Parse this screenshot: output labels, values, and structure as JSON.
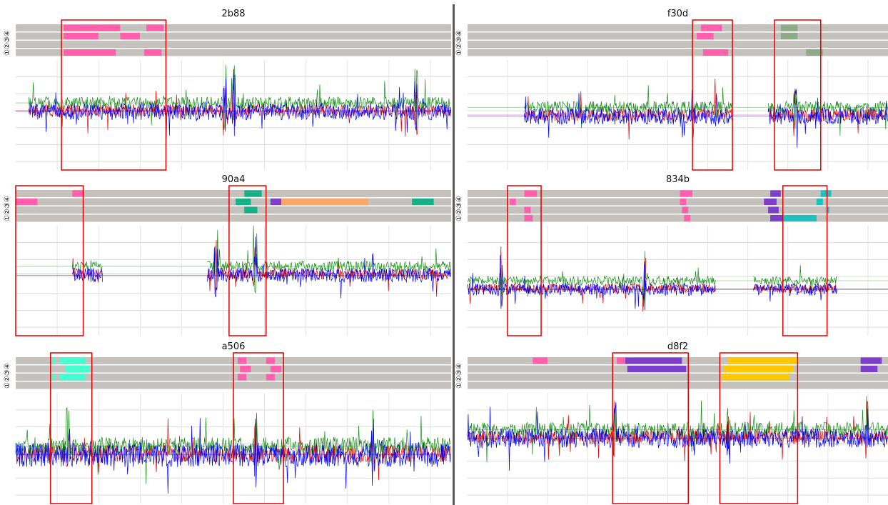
{
  "figure": {
    "track_labels": [
      "①",
      "②",
      "③",
      "④"
    ],
    "series_colors": [
      "#e00000",
      "#1a8a1a",
      "#0000ee"
    ]
  },
  "chart_data": [
    {
      "id": "2b88",
      "title": "2b88",
      "type": "line",
      "annotation_tracks": [
        [
          {
            "start": 0.11,
            "end": 0.24,
            "color": "#ff5fab"
          },
          {
            "start": 0.3,
            "end": 0.34,
            "color": "#ff5fab"
          }
        ],
        [
          {
            "start": 0.11,
            "end": 0.19,
            "color": "#ff5fab"
          },
          {
            "start": 0.24,
            "end": 0.285,
            "color": "#ff5fab"
          }
        ],
        [],
        [
          {
            "start": 0.11,
            "end": 0.23,
            "color": "#ff5fab"
          },
          {
            "start": 0.295,
            "end": 0.335,
            "color": "#ff5fab"
          }
        ]
      ],
      "highlights": [
        {
          "start": 0.105,
          "end": 0.345
        }
      ],
      "signal": {
        "active": [
          [
            0.03,
            1.0
          ]
        ],
        "level": 0.44,
        "spread": 0.14,
        "spikes": [
          0.5,
          0.92,
          0.48
        ]
      }
    },
    {
      "id": "90a4",
      "title": "90a4",
      "type": "line",
      "annotation_tracks": [
        [
          {
            "start": 0.13,
            "end": 0.155,
            "color": "#ff5fab"
          },
          {
            "start": 0.525,
            "end": 0.565,
            "color": "#17b085"
          }
        ],
        [
          {
            "start": 0.0,
            "end": 0.05,
            "color": "#ff5fab"
          },
          {
            "start": 0.505,
            "end": 0.54,
            "color": "#17b085"
          },
          {
            "start": 0.585,
            "end": 0.61,
            "color": "#7c3fc9"
          },
          {
            "start": 0.61,
            "end": 0.81,
            "color": "#f7a86a"
          },
          {
            "start": 0.91,
            "end": 0.96,
            "color": "#17b085"
          }
        ],
        [
          {
            "start": 0.525,
            "end": 0.555,
            "color": "#17b085"
          }
        ],
        []
      ],
      "highlights": [
        {
          "start": 0.0,
          "end": 0.155
        },
        {
          "start": 0.49,
          "end": 0.575
        }
      ],
      "signal": {
        "active": [
          [
            0.13,
            0.2
          ],
          [
            0.44,
            1.0
          ]
        ],
        "level": 0.42,
        "spread": 0.12,
        "spikes": [
          0.55,
          0.46
        ]
      }
    },
    {
      "id": "a506",
      "title": "a506",
      "type": "line",
      "annotation_tracks": [
        [
          {
            "start": 0.085,
            "end": 0.09,
            "color": "#44ffd0"
          },
          {
            "start": 0.1,
            "end": 0.16,
            "color": "#44ffd0"
          },
          {
            "start": 0.51,
            "end": 0.53,
            "color": "#ff5fab"
          },
          {
            "start": 0.575,
            "end": 0.595,
            "color": "#ff5fab"
          }
        ],
        [
          {
            "start": 0.115,
            "end": 0.17,
            "color": "#44ffd0"
          },
          {
            "start": 0.515,
            "end": 0.54,
            "color": "#ff5fab"
          },
          {
            "start": 0.585,
            "end": 0.61,
            "color": "#ff5fab"
          }
        ],
        [
          {
            "start": 0.085,
            "end": 0.09,
            "color": "#44ffd0"
          },
          {
            "start": 0.1,
            "end": 0.16,
            "color": "#44ffd0"
          },
          {
            "start": 0.51,
            "end": 0.53,
            "color": "#ff5fab"
          },
          {
            "start": 0.575,
            "end": 0.595,
            "color": "#ff5fab"
          }
        ],
        []
      ],
      "highlights": [
        {
          "start": 0.08,
          "end": 0.175
        },
        {
          "start": 0.5,
          "end": 0.615
        }
      ],
      "signal": {
        "active": [
          [
            0.0,
            1.0
          ]
        ],
        "level": 0.53,
        "spread": 0.2,
        "spikes": [
          0.12,
          0.55,
          0.82
        ]
      }
    },
    {
      "id": "f30d",
      "title": "f30d",
      "type": "line",
      "annotation_tracks": [
        [
          {
            "start": 0.555,
            "end": 0.605,
            "color": "#ff5fab"
          },
          {
            "start": 0.745,
            "end": 0.785,
            "color": "#8faa88"
          }
        ],
        [
          {
            "start": 0.545,
            "end": 0.585,
            "color": "#ff5fab"
          },
          {
            "start": 0.745,
            "end": 0.785,
            "color": "#8faa88"
          }
        ],
        [],
        [
          {
            "start": 0.56,
            "end": 0.62,
            "color": "#ff5fab"
          },
          {
            "start": 0.805,
            "end": 0.845,
            "color": "#8faa88"
          }
        ]
      ],
      "highlights": [
        {
          "start": 0.535,
          "end": 0.63
        },
        {
          "start": 0.73,
          "end": 0.84
        }
      ],
      "signal": {
        "active": [
          [
            0.135,
            0.63
          ],
          [
            0.715,
            1.0
          ]
        ],
        "level": 0.48,
        "spread": 0.14,
        "spikes": [
          0.59,
          0.78
        ]
      }
    },
    {
      "id": "834b",
      "title": "834b",
      "type": "line",
      "annotation_tracks": [
        [
          {
            "start": 0.135,
            "end": 0.165,
            "color": "#ff5fab"
          },
          {
            "start": 0.505,
            "end": 0.535,
            "color": "#ff5fab"
          },
          {
            "start": 0.72,
            "end": 0.745,
            "color": "#7c3fc9"
          },
          {
            "start": 0.84,
            "end": 0.865,
            "color": "#1fbfbf"
          }
        ],
        [
          {
            "start": 0.1,
            "end": 0.115,
            "color": "#ff5fab"
          },
          {
            "start": 0.505,
            "end": 0.52,
            "color": "#ff5fab"
          },
          {
            "start": 0.705,
            "end": 0.735,
            "color": "#7c3fc9"
          },
          {
            "start": 0.83,
            "end": 0.845,
            "color": "#1fbfbf"
          }
        ],
        [
          {
            "start": 0.135,
            "end": 0.15,
            "color": "#ff5fab"
          },
          {
            "start": 0.51,
            "end": 0.525,
            "color": "#ff5fab"
          },
          {
            "start": 0.715,
            "end": 0.74,
            "color": "#7c3fc9"
          },
          {
            "start": 0.855,
            "end": 0.86,
            "color": "#1fbfbf"
          }
        ],
        [
          {
            "start": 0.135,
            "end": 0.155,
            "color": "#ff5fab"
          },
          {
            "start": 0.515,
            "end": 0.53,
            "color": "#ff5fab"
          },
          {
            "start": 0.72,
            "end": 0.75,
            "color": "#7c3fc9"
          },
          {
            "start": 0.75,
            "end": 0.83,
            "color": "#1fbfbf"
          }
        ]
      ],
      "highlights": [
        {
          "start": 0.095,
          "end": 0.175
        },
        {
          "start": 0.75,
          "end": 0.855
        }
      ],
      "signal": {
        "active": [
          [
            0.0,
            0.59
          ],
          [
            0.68,
            0.88
          ]
        ],
        "level": 0.55,
        "spread": 0.1,
        "spikes": [
          0.08,
          0.42
        ]
      }
    },
    {
      "id": "d8f2",
      "title": "d8f2",
      "type": "line",
      "annotation_tracks": [
        [
          {
            "start": 0.155,
            "end": 0.19,
            "color": "#ff5fab"
          },
          {
            "start": 0.355,
            "end": 0.375,
            "color": "#ff5fab"
          },
          {
            "start": 0.375,
            "end": 0.51,
            "color": "#7c3fc9"
          },
          {
            "start": 0.62,
            "end": 0.785,
            "color": "#ffc800"
          },
          {
            "start": 0.935,
            "end": 0.985,
            "color": "#7c3fc9"
          }
        ],
        [
          {
            "start": 0.38,
            "end": 0.52,
            "color": "#7c3fc9"
          },
          {
            "start": 0.61,
            "end": 0.775,
            "color": "#ffc800"
          },
          {
            "start": 0.935,
            "end": 0.975,
            "color": "#7c3fc9"
          }
        ],
        [
          {
            "start": 0.605,
            "end": 0.765,
            "color": "#ffc800"
          }
        ],
        []
      ],
      "highlights": [
        {
          "start": 0.345,
          "end": 0.525
        },
        {
          "start": 0.6,
          "end": 0.785
        }
      ],
      "signal": {
        "active": [
          [
            0.0,
            1.0
          ]
        ],
        "level": 0.38,
        "spread": 0.16,
        "spikes": [
          0.35,
          0.62,
          0.95
        ]
      }
    }
  ]
}
